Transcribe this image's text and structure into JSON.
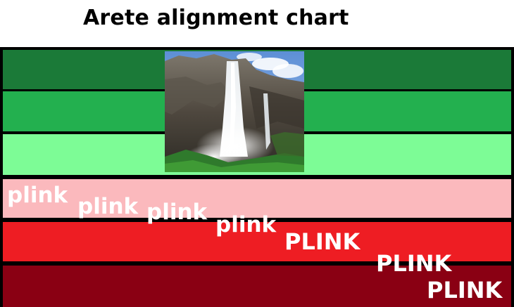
{
  "title": "Arete alignment chart",
  "bands": [
    {
      "color": "#1b7a38"
    },
    {
      "color": "#23b04f"
    },
    {
      "color": "#7dfc96"
    },
    {
      "color": "#fbb9bd"
    },
    {
      "color": "#ee1d23"
    },
    {
      "color": "#8a0013"
    }
  ],
  "photo_subject": "waterfall",
  "plinks": [
    {
      "text": "plink"
    },
    {
      "text": "plink"
    },
    {
      "text": "plink"
    },
    {
      "text": "plink"
    },
    {
      "text": "PLINK"
    },
    {
      "text": "PLINK"
    },
    {
      "text": "PLINK"
    }
  ]
}
